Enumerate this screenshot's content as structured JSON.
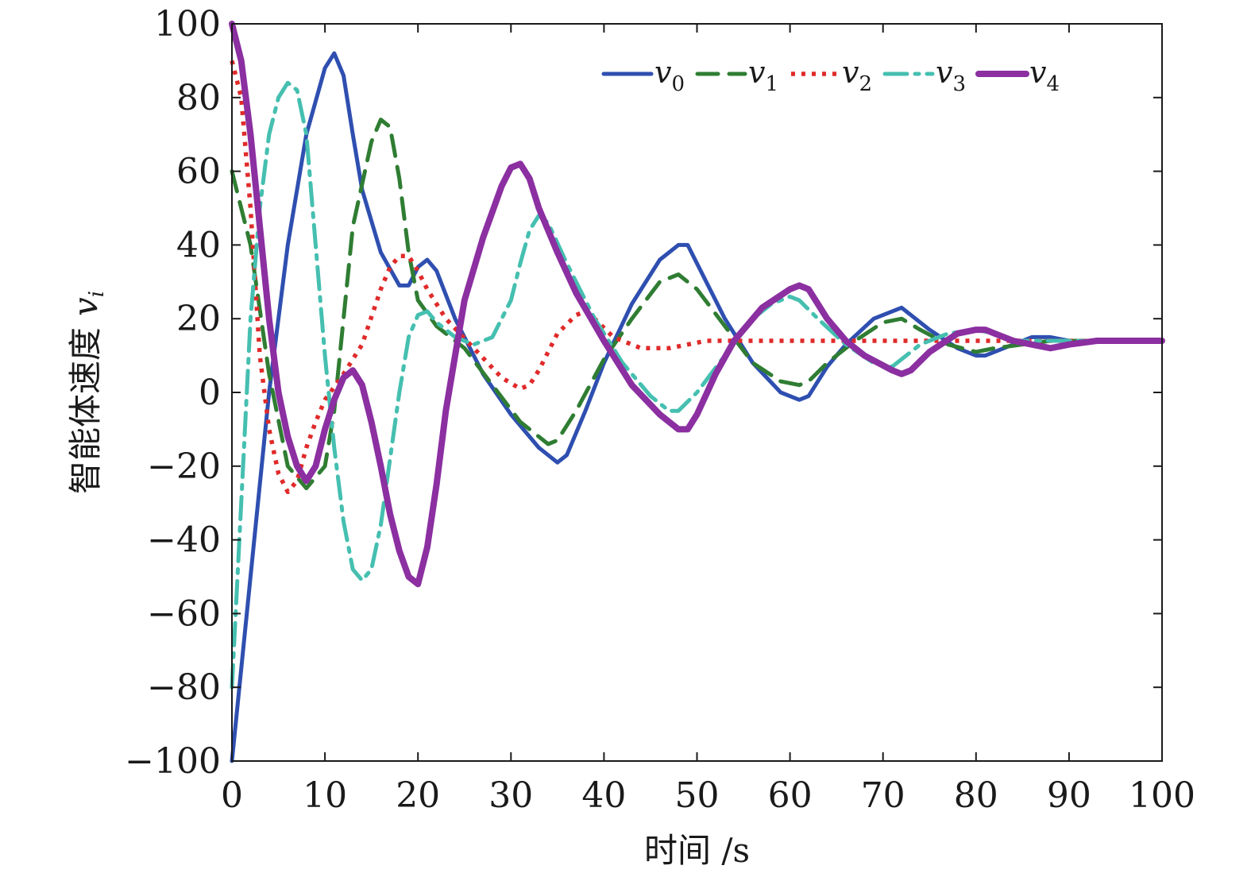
{
  "chart_data": {
    "type": "line",
    "xlabel": "时间 /s",
    "ylabel": "智能体速度",
    "ylabel_symbol": "v",
    "ylabel_sub": "i",
    "xlim": [
      0,
      100
    ],
    "ylim": [
      -100,
      100
    ],
    "xticks": [
      0,
      10,
      20,
      30,
      40,
      50,
      60,
      70,
      80,
      90,
      100
    ],
    "yticks": [
      -100,
      -80,
      -60,
      -40,
      -20,
      0,
      20,
      40,
      60,
      80,
      100
    ],
    "grid": false,
    "legend_position": "top-right",
    "series": [
      {
        "name": "v",
        "sub": "0",
        "color": "#2f4fb0",
        "dash": "solid",
        "points": [
          [
            0,
            -100
          ],
          [
            2,
            -50
          ],
          [
            4,
            0
          ],
          [
            6,
            40
          ],
          [
            8,
            70
          ],
          [
            10,
            88
          ],
          [
            11,
            92
          ],
          [
            12,
            86
          ],
          [
            13,
            70
          ],
          [
            14,
            55
          ],
          [
            16,
            38
          ],
          [
            18,
            29
          ],
          [
            19,
            29
          ],
          [
            20,
            34
          ],
          [
            21,
            36
          ],
          [
            22,
            33
          ],
          [
            24,
            20
          ],
          [
            27,
            5
          ],
          [
            30,
            -6
          ],
          [
            33,
            -15
          ],
          [
            35,
            -19
          ],
          [
            36,
            -17
          ],
          [
            38,
            -5
          ],
          [
            40,
            8
          ],
          [
            43,
            24
          ],
          [
            46,
            36
          ],
          [
            48,
            40
          ],
          [
            49,
            40
          ],
          [
            50,
            35
          ],
          [
            53,
            20
          ],
          [
            56,
            8
          ],
          [
            59,
            0
          ],
          [
            61,
            -2
          ],
          [
            62,
            -1
          ],
          [
            64,
            7
          ],
          [
            66,
            13
          ],
          [
            69,
            20
          ],
          [
            71,
            22
          ],
          [
            72,
            23
          ],
          [
            73,
            21
          ],
          [
            75,
            17
          ],
          [
            78,
            12
          ],
          [
            80,
            10
          ],
          [
            81,
            10
          ],
          [
            83,
            12
          ],
          [
            86,
            15
          ],
          [
            88,
            15
          ],
          [
            90,
            14
          ],
          [
            93,
            14
          ],
          [
            100,
            14
          ]
        ]
      },
      {
        "name": "v",
        "sub": "1",
        "color": "#2f7d33",
        "dash": "dashed",
        "points": [
          [
            0,
            60
          ],
          [
            2,
            40
          ],
          [
            4,
            5
          ],
          [
            6,
            -20
          ],
          [
            8,
            -26
          ],
          [
            10,
            -20
          ],
          [
            11,
            -5
          ],
          [
            12,
            20
          ],
          [
            13,
            45
          ],
          [
            15,
            68
          ],
          [
            16,
            74
          ],
          [
            17,
            72
          ],
          [
            18,
            58
          ],
          [
            19,
            38
          ],
          [
            20,
            25
          ],
          [
            22,
            18
          ],
          [
            25,
            12
          ],
          [
            28,
            2
          ],
          [
            31,
            -8
          ],
          [
            34,
            -14
          ],
          [
            35,
            -13
          ],
          [
            37,
            -5
          ],
          [
            40,
            9
          ],
          [
            43,
            20
          ],
          [
            46,
            30
          ],
          [
            48,
            32
          ],
          [
            50,
            28
          ],
          [
            53,
            18
          ],
          [
            56,
            8
          ],
          [
            59,
            3
          ],
          [
            61,
            2
          ],
          [
            62,
            3
          ],
          [
            64,
            8
          ],
          [
            67,
            14
          ],
          [
            70,
            19
          ],
          [
            72,
            20
          ],
          [
            74,
            17
          ],
          [
            77,
            13
          ],
          [
            80,
            11
          ],
          [
            82,
            12
          ],
          [
            85,
            13
          ],
          [
            88,
            14
          ],
          [
            91,
            14
          ],
          [
            100,
            14
          ]
        ]
      },
      {
        "name": "v",
        "sub": "2",
        "color": "#e02a2a",
        "dash": "dotted",
        "points": [
          [
            0,
            90
          ],
          [
            1,
            80
          ],
          [
            2,
            50
          ],
          [
            3,
            10
          ],
          [
            4,
            -10
          ],
          [
            5,
            -22
          ],
          [
            6,
            -27
          ],
          [
            7,
            -24
          ],
          [
            8,
            -15
          ],
          [
            9,
            -8
          ],
          [
            10,
            -2
          ],
          [
            12,
            5
          ],
          [
            14,
            13
          ],
          [
            16,
            28
          ],
          [
            17,
            34
          ],
          [
            18,
            37
          ],
          [
            19,
            37
          ],
          [
            20,
            33
          ],
          [
            21,
            28
          ],
          [
            23,
            20
          ],
          [
            26,
            12
          ],
          [
            29,
            4
          ],
          [
            31,
            1
          ],
          [
            32,
            2
          ],
          [
            33,
            6
          ],
          [
            35,
            16
          ],
          [
            37,
            21
          ],
          [
            38,
            22
          ],
          [
            39,
            20
          ],
          [
            41,
            15
          ],
          [
            44,
            12
          ],
          [
            47,
            12
          ],
          [
            49,
            13
          ],
          [
            51,
            14
          ],
          [
            55,
            14
          ],
          [
            60,
            14
          ],
          [
            70,
            14
          ],
          [
            80,
            14
          ],
          [
            100,
            14
          ]
        ]
      },
      {
        "name": "v",
        "sub": "3",
        "color": "#45bfb0",
        "dash": "dashdot",
        "points": [
          [
            0,
            -80
          ],
          [
            1,
            -30
          ],
          [
            2,
            20
          ],
          [
            3,
            50
          ],
          [
            4,
            70
          ],
          [
            5,
            80
          ],
          [
            6,
            84
          ],
          [
            7,
            82
          ],
          [
            8,
            70
          ],
          [
            9,
            40
          ],
          [
            10,
            10
          ],
          [
            11,
            -15
          ],
          [
            12,
            -35
          ],
          [
            13,
            -48
          ],
          [
            14,
            -51
          ],
          [
            15,
            -48
          ],
          [
            16,
            -36
          ],
          [
            17,
            -18
          ],
          [
            18,
            0
          ],
          [
            19,
            15
          ],
          [
            20,
            21
          ],
          [
            21,
            22
          ],
          [
            22,
            19
          ],
          [
            24,
            15
          ],
          [
            26,
            13
          ],
          [
            28,
            15
          ],
          [
            30,
            25
          ],
          [
            31,
            35
          ],
          [
            32,
            44
          ],
          [
            33,
            48
          ],
          [
            34,
            46
          ],
          [
            36,
            35
          ],
          [
            39,
            20
          ],
          [
            42,
            8
          ],
          [
            45,
            -1
          ],
          [
            47,
            -5
          ],
          [
            48,
            -5
          ],
          [
            50,
            0
          ],
          [
            53,
            10
          ],
          [
            56,
            20
          ],
          [
            58,
            24
          ],
          [
            60,
            26
          ],
          [
            61,
            25
          ],
          [
            63,
            20
          ],
          [
            66,
            13
          ],
          [
            69,
            8
          ],
          [
            71,
            7
          ],
          [
            72,
            9
          ],
          [
            74,
            13
          ],
          [
            77,
            16
          ],
          [
            80,
            17
          ],
          [
            82,
            16
          ],
          [
            84,
            14
          ],
          [
            87,
            14
          ],
          [
            90,
            14
          ],
          [
            100,
            14
          ]
        ]
      },
      {
        "name": "v",
        "sub": "4",
        "color": "#8b2fa1",
        "dash": "solid-thick",
        "points": [
          [
            0,
            100
          ],
          [
            1,
            90
          ],
          [
            2,
            70
          ],
          [
            3,
            45
          ],
          [
            4,
            20
          ],
          [
            5,
            0
          ],
          [
            6,
            -12
          ],
          [
            7,
            -20
          ],
          [
            8,
            -24
          ],
          [
            9,
            -20
          ],
          [
            10,
            -10
          ],
          [
            11,
            -2
          ],
          [
            12,
            4
          ],
          [
            13,
            6
          ],
          [
            14,
            2
          ],
          [
            15,
            -8
          ],
          [
            16,
            -20
          ],
          [
            17,
            -33
          ],
          [
            18,
            -43
          ],
          [
            19,
            -50
          ],
          [
            20,
            -52
          ],
          [
            21,
            -42
          ],
          [
            22,
            -25
          ],
          [
            23,
            -5
          ],
          [
            24,
            10
          ],
          [
            25,
            25
          ],
          [
            27,
            42
          ],
          [
            29,
            56
          ],
          [
            30,
            61
          ],
          [
            31,
            62
          ],
          [
            32,
            58
          ],
          [
            33,
            50
          ],
          [
            35,
            38
          ],
          [
            37,
            27
          ],
          [
            40,
            14
          ],
          [
            43,
            2
          ],
          [
            46,
            -6
          ],
          [
            48,
            -10
          ],
          [
            49,
            -10
          ],
          [
            50,
            -6
          ],
          [
            52,
            5
          ],
          [
            54,
            14
          ],
          [
            57,
            23
          ],
          [
            60,
            28
          ],
          [
            61,
            29
          ],
          [
            62,
            28
          ],
          [
            64,
            20
          ],
          [
            66,
            14
          ],
          [
            68,
            10
          ],
          [
            71,
            6
          ],
          [
            72,
            5
          ],
          [
            73,
            6
          ],
          [
            75,
            11
          ],
          [
            78,
            16
          ],
          [
            80,
            17
          ],
          [
            81,
            17
          ],
          [
            82,
            16
          ],
          [
            84,
            14
          ],
          [
            86,
            13
          ],
          [
            88,
            12
          ],
          [
            90,
            13
          ],
          [
            93,
            14
          ],
          [
            100,
            14
          ]
        ]
      }
    ]
  }
}
